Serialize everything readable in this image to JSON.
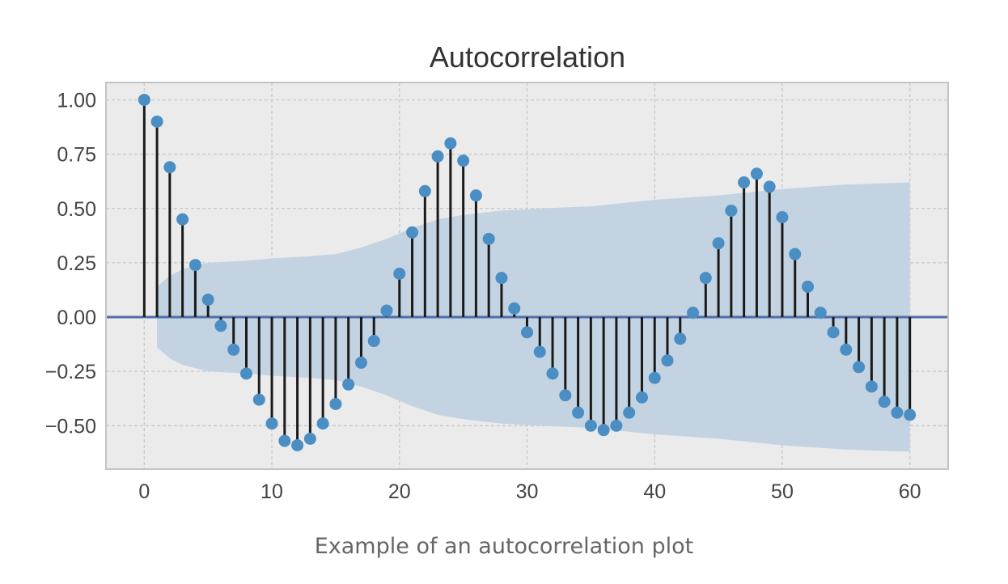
{
  "caption": "Example of an autocorrelation plot",
  "chart_data": {
    "type": "stem",
    "title": "Autocorrelation",
    "xlabel": "",
    "ylabel": "",
    "xlim": [
      -3,
      63
    ],
    "ylim": [
      -0.7,
      1.08
    ],
    "grid": true,
    "x_ticks": [
      0,
      10,
      20,
      30,
      40,
      50,
      60
    ],
    "x_tick_labels": [
      "0",
      "10",
      "20",
      "30",
      "40",
      "50",
      "60"
    ],
    "y_ticks": [
      1.0,
      0.75,
      0.5,
      0.25,
      0.0,
      -0.25,
      -0.5
    ],
    "y_tick_labels": [
      "1.00",
      "0.75",
      "0.50",
      "0.25",
      "0.00",
      "−0.25",
      "−0.50"
    ],
    "lags": [
      0,
      1,
      2,
      3,
      4,
      5,
      6,
      7,
      8,
      9,
      10,
      11,
      12,
      13,
      14,
      15,
      16,
      17,
      18,
      19,
      20,
      21,
      22,
      23,
      24,
      25,
      26,
      27,
      28,
      29,
      30,
      31,
      32,
      33,
      34,
      35,
      36,
      37,
      38,
      39,
      40,
      41,
      42,
      43,
      44,
      45,
      46,
      47,
      48,
      49,
      50,
      51,
      52,
      53,
      54,
      55,
      56,
      57,
      58,
      59,
      60
    ],
    "values": [
      1.0,
      0.9,
      0.69,
      0.45,
      0.24,
      0.08,
      -0.04,
      -0.15,
      -0.26,
      -0.38,
      -0.49,
      -0.57,
      -0.59,
      -0.56,
      -0.49,
      -0.4,
      -0.31,
      -0.21,
      -0.11,
      0.03,
      0.2,
      0.39,
      0.58,
      0.74,
      0.8,
      0.72,
      0.56,
      0.36,
      0.18,
      0.04,
      -0.07,
      -0.16,
      -0.26,
      -0.36,
      -0.44,
      -0.5,
      -0.52,
      -0.5,
      -0.44,
      -0.37,
      -0.28,
      -0.2,
      -0.1,
      0.02,
      0.18,
      0.34,
      0.49,
      0.62,
      0.66,
      0.6,
      0.46,
      0.29,
      0.14,
      0.02,
      -0.07,
      -0.15,
      -0.23,
      -0.32,
      -0.39,
      -0.44,
      -0.45
    ],
    "confidence_band": {
      "lags": [
        1,
        2,
        3,
        5,
        8,
        10,
        13,
        15,
        17,
        19,
        21,
        23,
        25,
        28,
        31,
        35,
        40,
        45,
        50,
        55,
        60
      ],
      "upper": [
        0.14,
        0.19,
        0.22,
        0.25,
        0.26,
        0.27,
        0.28,
        0.29,
        0.32,
        0.36,
        0.41,
        0.45,
        0.47,
        0.49,
        0.5,
        0.51,
        0.54,
        0.56,
        0.59,
        0.61,
        0.62
      ],
      "lower": [
        -0.14,
        -0.19,
        -0.22,
        -0.25,
        -0.26,
        -0.27,
        -0.28,
        -0.29,
        -0.32,
        -0.36,
        -0.41,
        -0.45,
        -0.47,
        -0.49,
        -0.5,
        -0.51,
        -0.54,
        -0.56,
        -0.59,
        -0.61,
        -0.62
      ]
    },
    "colors": {
      "background": "#ebebeb",
      "band": "#c3d3e2",
      "stem": "#1a1a1a",
      "marker": "#4b8ec4",
      "zero_line": "#4f6ea8",
      "grid": "#c8c8c8",
      "frame": "#c4c4c4"
    }
  }
}
